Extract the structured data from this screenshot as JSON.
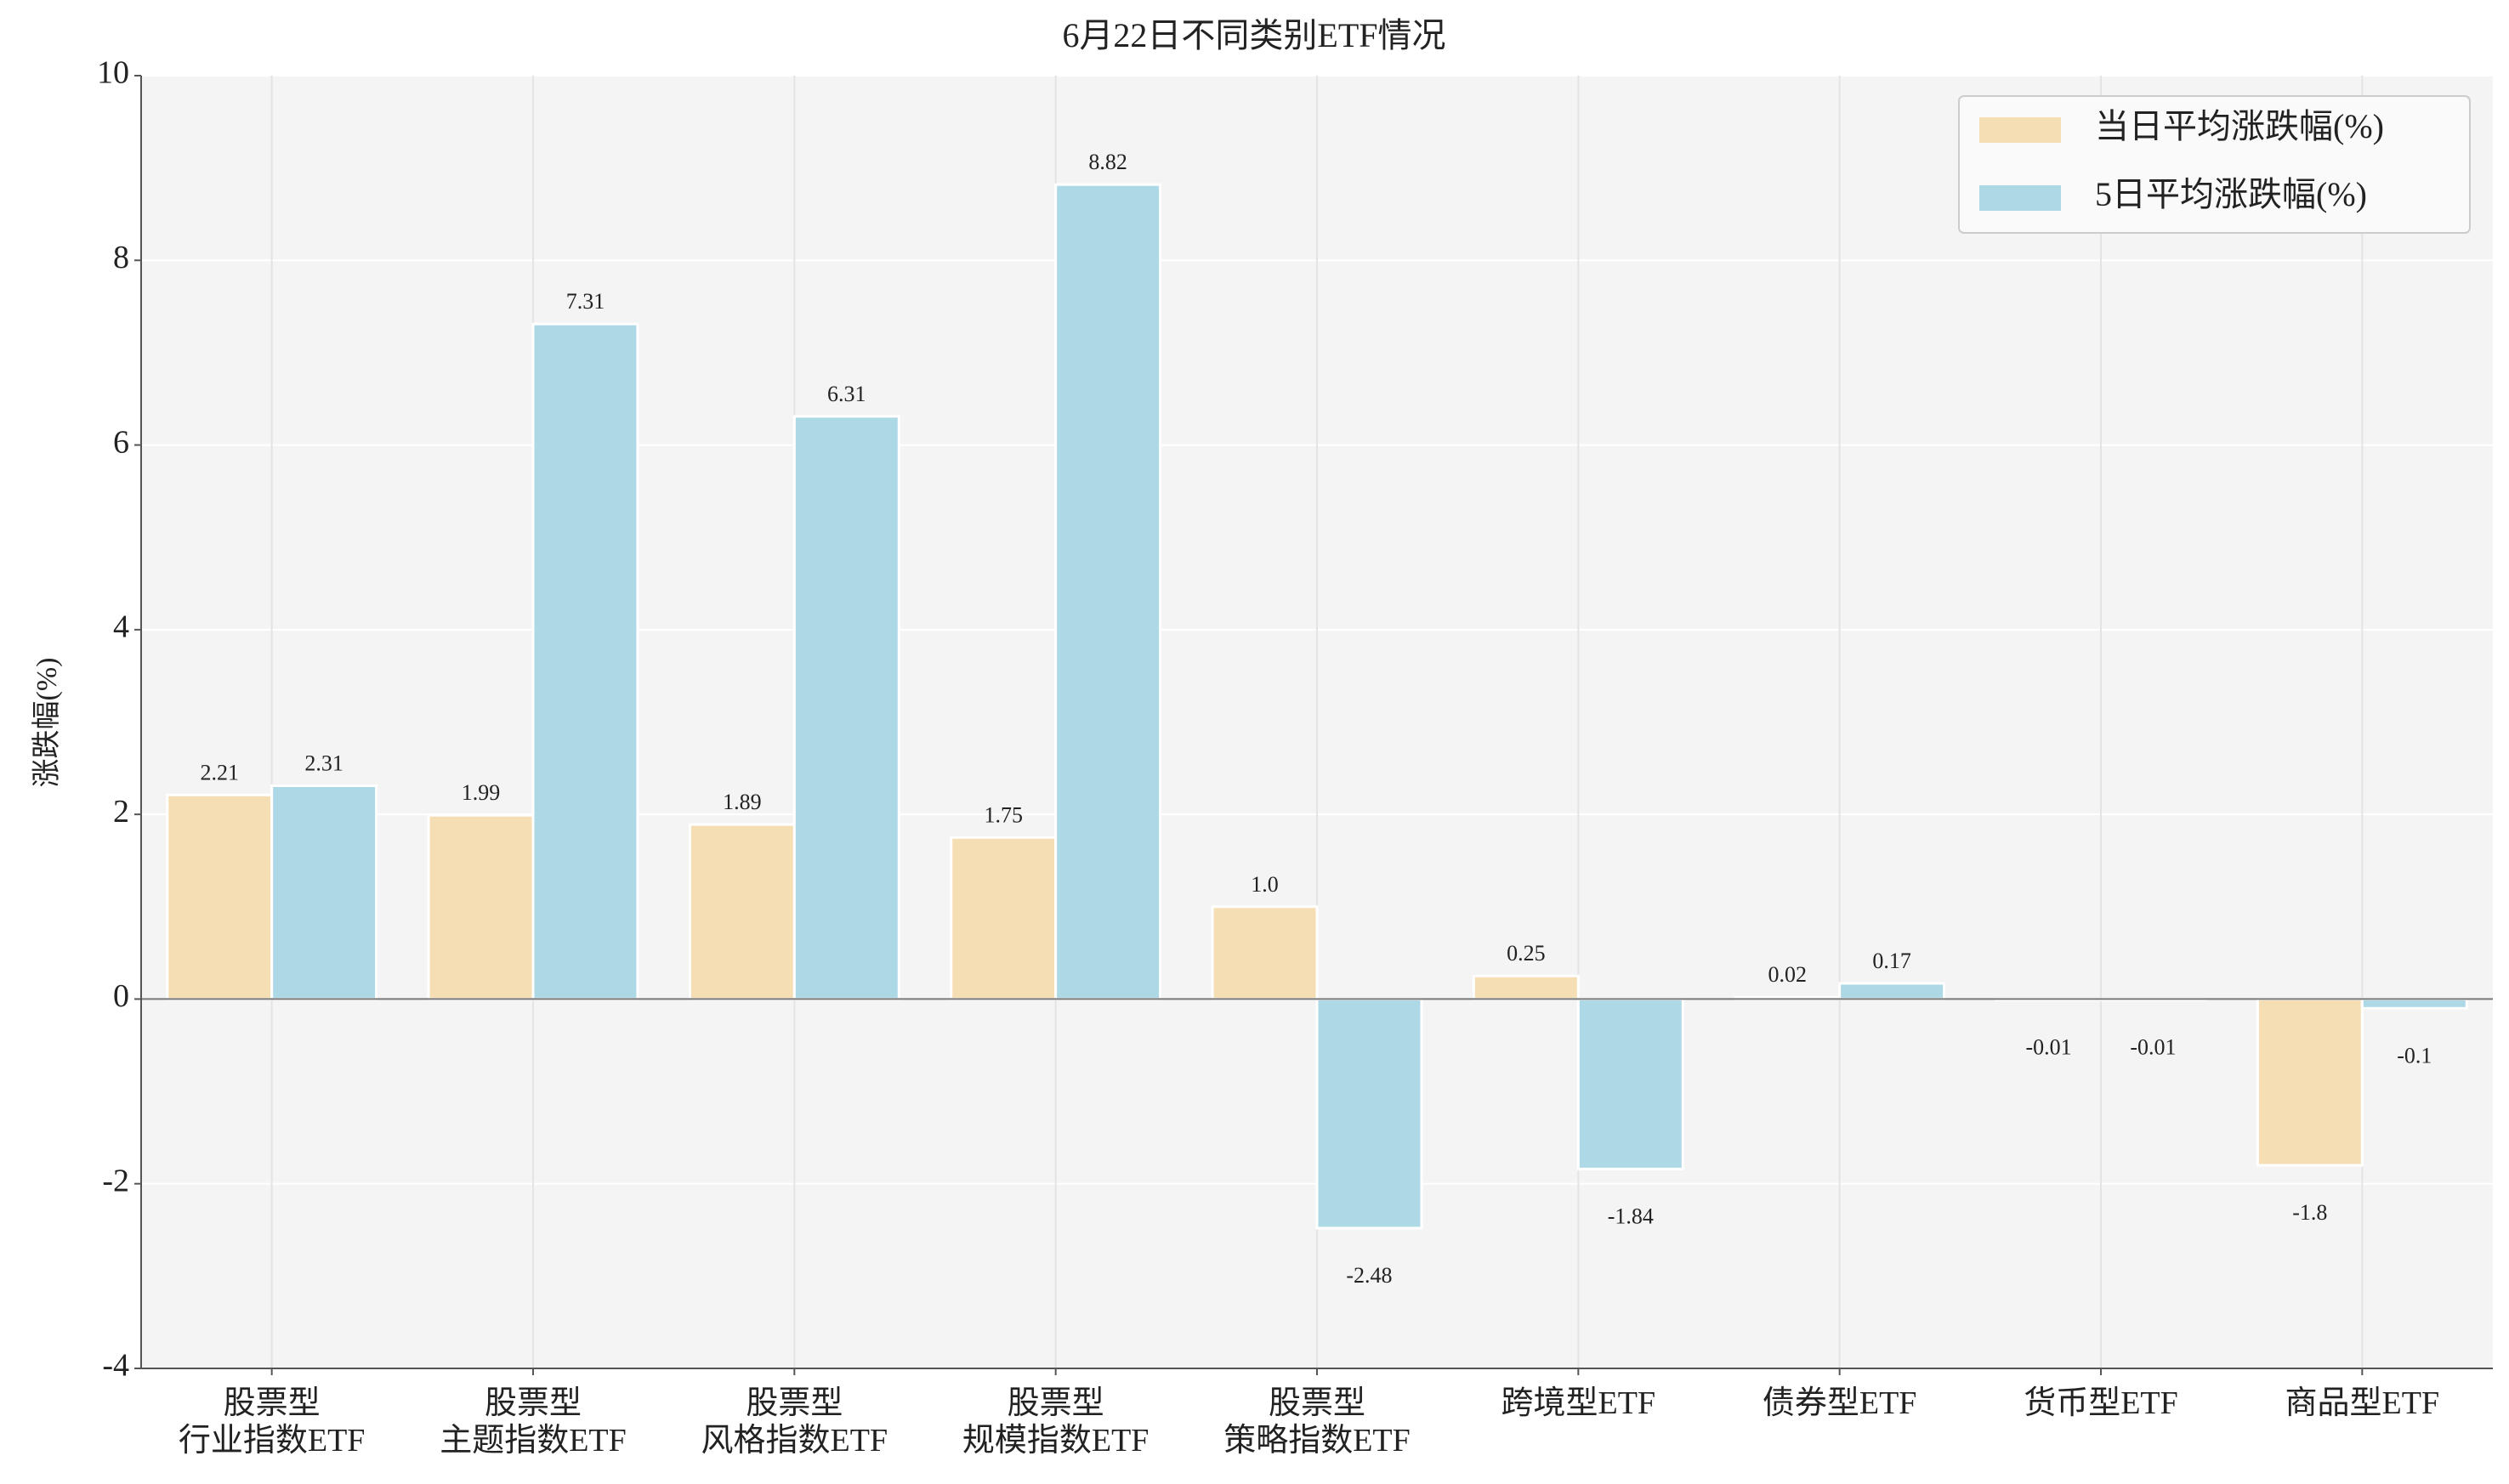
{
  "chart_data": {
    "type": "bar",
    "title": "6月22日不同类别ETF情况",
    "y_label": "涨跌幅(%)",
    "categories": [
      "股票型\n行业指数ETF",
      "股票型\n主题指数ETF",
      "股票型\n风格指数ETF",
      "股票型\n规模指数ETF",
      "股票型\n策略指数ETF",
      "跨境型ETF",
      "债券型ETF",
      "货币型ETF",
      "商品型ETF"
    ],
    "series": [
      {
        "name": "当日平均涨跌幅(%)",
        "color": "#f5deb3",
        "values": [
          2.21,
          1.99,
          1.89,
          1.75,
          1.0,
          0.25,
          0.02,
          -0.01,
          -1.8
        ],
        "value_labels": [
          "2.21",
          "1.99",
          "1.89",
          "1.75",
          "1.0",
          "0.25",
          "0.02",
          "-0.01",
          "-1.8"
        ]
      },
      {
        "name": "5日平均涨跌幅(%)",
        "color": "#add8e6",
        "values": [
          2.31,
          7.31,
          6.31,
          8.82,
          -2.48,
          -1.84,
          0.17,
          -0.01,
          -0.1
        ]
      }
    ],
    "ylim": [
      -4,
      10
    ],
    "yticks": [
      -4,
      -2,
      0,
      2,
      4,
      6,
      8,
      10
    ],
    "grid": true,
    "legend": "upper right"
  }
}
